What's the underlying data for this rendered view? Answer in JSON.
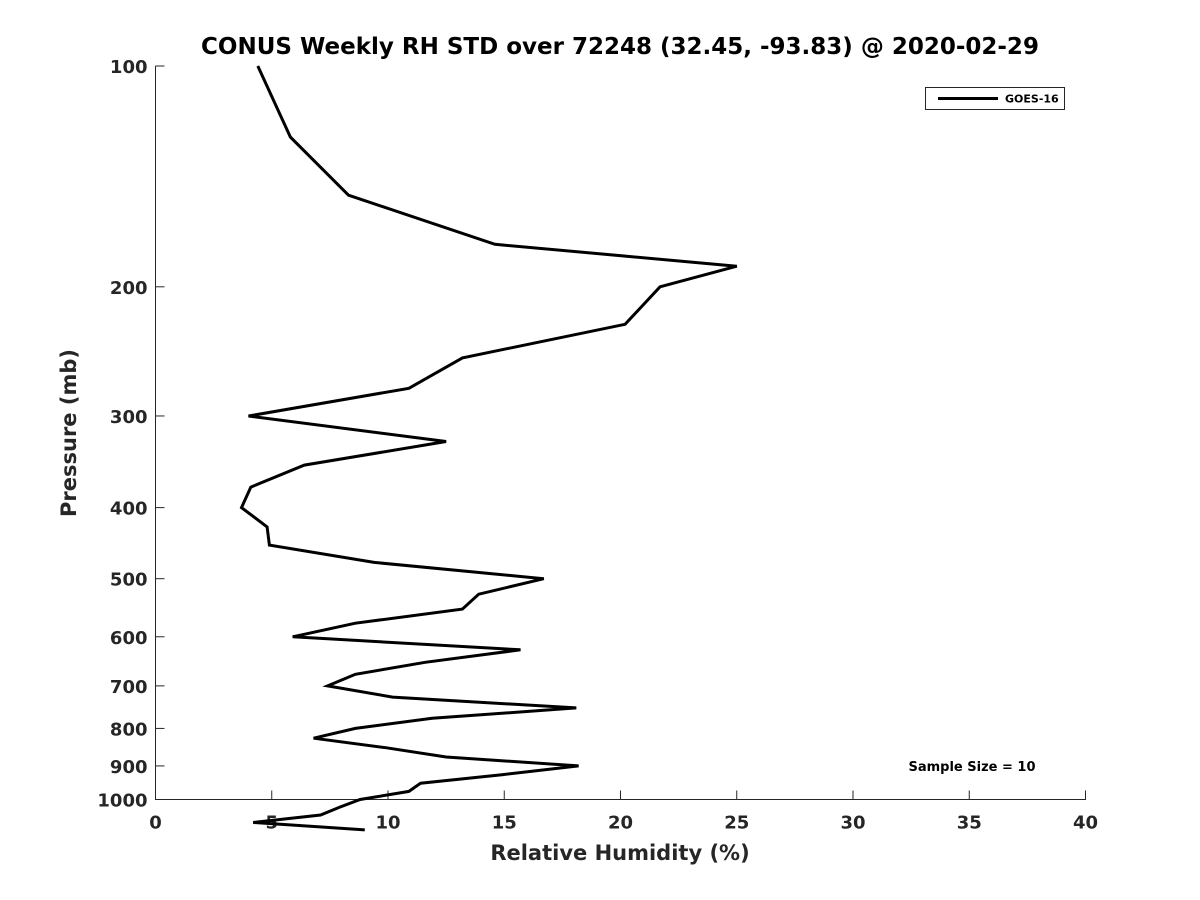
{
  "chart_data": {
    "type": "line",
    "title": "CONUS Weekly RH STD over 72248 (32.45, -93.83) @ 2020-02-29",
    "xlabel": "Relative Humidity (%)",
    "ylabel": "Pressure (mb)",
    "xlim": [
      0,
      40
    ],
    "ylim": [
      100,
      1000
    ],
    "y_scale": "log",
    "y_reversed": true,
    "x_ticks": [
      0,
      5,
      10,
      15,
      20,
      25,
      30,
      35,
      40
    ],
    "y_ticks": [
      100,
      200,
      300,
      400,
      500,
      600,
      700,
      800,
      900,
      1000
    ],
    "grid": false,
    "legend": {
      "placement": "top-right",
      "entries": [
        "GOES-16"
      ]
    },
    "annotation": "Sample Size = 10",
    "series": [
      {
        "name": "GOES-16",
        "color": "#000000",
        "points": [
          [
            4.4,
            100
          ],
          [
            5.8,
            125
          ],
          [
            8.3,
            150
          ],
          [
            14.6,
            175
          ],
          [
            25.0,
            187.5
          ],
          [
            21.7,
            200
          ],
          [
            20.2,
            225
          ],
          [
            13.2,
            250
          ],
          [
            10.9,
            275
          ],
          [
            4.0,
            300
          ],
          [
            12.5,
            325
          ],
          [
            6.4,
            350
          ],
          [
            4.1,
            375
          ],
          [
            3.7,
            400
          ],
          [
            4.8,
            425
          ],
          [
            4.9,
            450
          ],
          [
            9.4,
            475
          ],
          [
            16.7,
            500
          ],
          [
            13.9,
            525
          ],
          [
            13.2,
            550
          ],
          [
            8.6,
            575
          ],
          [
            5.9,
            600
          ],
          [
            15.7,
            625
          ],
          [
            11.6,
            650
          ],
          [
            8.6,
            675
          ],
          [
            7.4,
            700
          ],
          [
            10.2,
            725
          ],
          [
            18.1,
            750
          ],
          [
            11.9,
            775
          ],
          [
            8.6,
            800
          ],
          [
            6.8,
            825
          ],
          [
            9.9,
            850
          ],
          [
            12.5,
            875
          ],
          [
            18.2,
            900
          ],
          [
            14.9,
            925
          ],
          [
            11.4,
            950
          ],
          [
            10.9,
            975
          ],
          [
            8.8,
            1000
          ],
          [
            7.9,
            1025
          ],
          [
            7.1,
            1050
          ],
          [
            4.2,
            1075
          ],
          [
            9.0,
            1100
          ]
        ]
      }
    ]
  }
}
